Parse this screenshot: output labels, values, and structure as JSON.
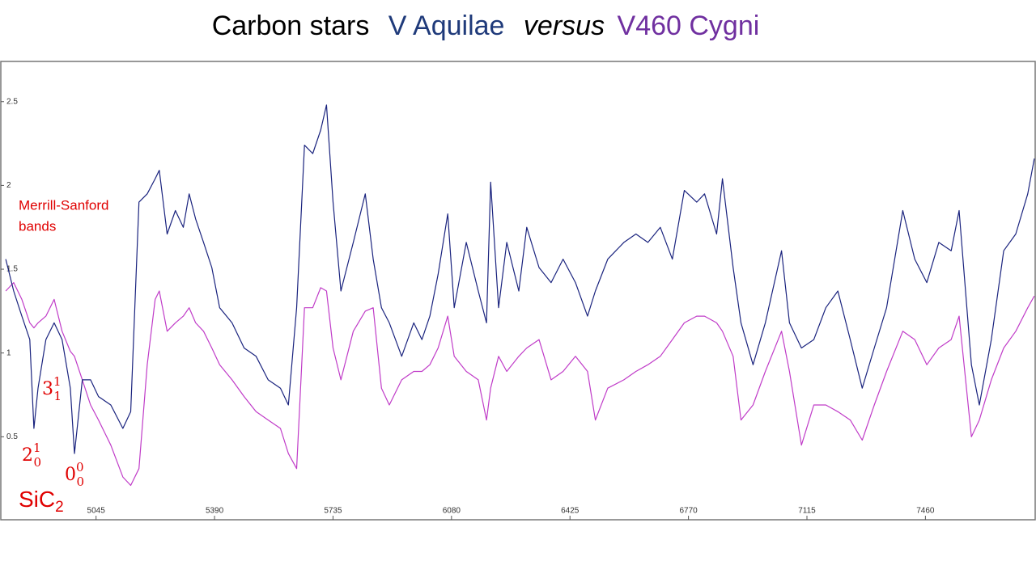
{
  "chart_data": {
    "type": "line",
    "title": "Carbon stars",
    "title_connector": "versus",
    "xlim": [
      4770,
      7782
    ],
    "xticks": [
      5045,
      5390,
      5735,
      6080,
      6425,
      6770,
      7115,
      7460
    ],
    "ylim": [
      0,
      2.74
    ],
    "yticks": [
      0.5,
      1,
      1.5,
      2,
      2.5
    ],
    "x": [
      4782,
      4805,
      4829,
      4852,
      4864,
      4876,
      4899,
      4923,
      4946,
      4970,
      4982,
      5005,
      5029,
      5052,
      5088,
      5123,
      5146,
      5170,
      5194,
      5217,
      5229,
      5252,
      5276,
      5299,
      5316,
      5335,
      5358,
      5382,
      5405,
      5441,
      5476,
      5511,
      5546,
      5582,
      5605,
      5629,
      5652,
      5676,
      5699,
      5716,
      5735,
      5758,
      5794,
      5829,
      5852,
      5876,
      5899,
      5935,
      5970,
      5994,
      6017,
      6041,
      6069,
      6088,
      6123,
      6158,
      6182,
      6194,
      6217,
      6241,
      6276,
      6299,
      6335,
      6370,
      6405,
      6441,
      6476,
      6499,
      6535,
      6582,
      6617,
      6652,
      6688,
      6723,
      6758,
      6794,
      6817,
      6852,
      6869,
      6900,
      6923,
      6958,
      6994,
      7041,
      7064,
      7099,
      7135,
      7170,
      7205,
      7241,
      7276,
      7311,
      7347,
      7394,
      7429,
      7464,
      7499,
      7535,
      7558,
      7594,
      7617,
      7652,
      7688,
      7723,
      7758,
      7777
    ],
    "series": [
      {
        "name": "V Aquilae",
        "color": "#1a237e",
        "label_color": "#1f3a7a",
        "values": [
          1.56,
          1.37,
          1.22,
          1.08,
          0.55,
          0.79,
          1.08,
          1.18,
          1.08,
          0.79,
          0.4,
          0.84,
          0.84,
          0.74,
          0.69,
          0.55,
          0.65,
          1.9,
          1.95,
          2.04,
          2.09,
          1.71,
          1.85,
          1.75,
          1.95,
          1.8,
          1.66,
          1.51,
          1.27,
          1.18,
          1.03,
          0.98,
          0.84,
          0.79,
          0.69,
          1.27,
          2.24,
          2.19,
          2.33,
          2.48,
          1.9,
          1.37,
          1.66,
          1.95,
          1.56,
          1.27,
          1.18,
          0.98,
          1.18,
          1.08,
          1.22,
          1.47,
          1.83,
          1.27,
          1.66,
          1.37,
          1.18,
          2.02,
          1.27,
          1.66,
          1.37,
          1.75,
          1.51,
          1.42,
          1.56,
          1.42,
          1.22,
          1.37,
          1.56,
          1.66,
          1.71,
          1.66,
          1.75,
          1.56,
          1.97,
          1.9,
          1.95,
          1.71,
          2.04,
          1.51,
          1.18,
          0.93,
          1.18,
          1.61,
          1.18,
          1.03,
          1.08,
          1.27,
          1.37,
          1.08,
          0.79,
          1.03,
          1.27,
          1.85,
          1.56,
          1.42,
          1.66,
          1.61,
          1.85,
          0.93,
          0.69,
          1.08,
          1.61,
          1.71,
          1.95,
          2.16
        ]
      },
      {
        "name": "V460 Cygni",
        "color": "#c03cc8",
        "label_color": "#7030a0",
        "values": [
          1.37,
          1.42,
          1.32,
          1.18,
          1.15,
          1.18,
          1.22,
          1.32,
          1.13,
          1.01,
          0.98,
          0.84,
          0.69,
          0.6,
          0.45,
          0.26,
          0.21,
          0.31,
          0.93,
          1.32,
          1.37,
          1.13,
          1.18,
          1.22,
          1.27,
          1.18,
          1.13,
          1.03,
          0.93,
          0.84,
          0.74,
          0.65,
          0.6,
          0.55,
          0.4,
          0.31,
          1.27,
          1.27,
          1.39,
          1.37,
          1.03,
          0.84,
          1.13,
          1.25,
          1.27,
          0.79,
          0.69,
          0.84,
          0.89,
          0.89,
          0.93,
          1.03,
          1.22,
          0.98,
          0.89,
          0.84,
          0.6,
          0.79,
          0.98,
          0.89,
          0.98,
          1.03,
          1.08,
          0.84,
          0.89,
          0.98,
          0.89,
          0.6,
          0.79,
          0.84,
          0.89,
          0.93,
          0.98,
          1.08,
          1.18,
          1.22,
          1.22,
          1.18,
          1.13,
          0.98,
          0.6,
          0.69,
          0.89,
          1.13,
          0.89,
          0.45,
          0.69,
          0.69,
          0.65,
          0.6,
          0.48,
          0.69,
          0.89,
          1.13,
          1.08,
          0.93,
          1.03,
          1.08,
          1.22,
          0.5,
          0.6,
          0.84,
          1.03,
          1.13,
          1.27,
          1.34
        ]
      }
    ],
    "annotations": {
      "bands": [
        "Merrill-Sanford",
        "bands"
      ],
      "transitions": [
        {
          "text": "3",
          "sup": "1",
          "sub": "1"
        },
        {
          "text": "2",
          "sup": "1",
          "sub": "0"
        },
        {
          "text": "0",
          "sup": "0",
          "sub": "0"
        }
      ],
      "molecule": {
        "text": "SiC",
        "sub": "2"
      }
    }
  }
}
